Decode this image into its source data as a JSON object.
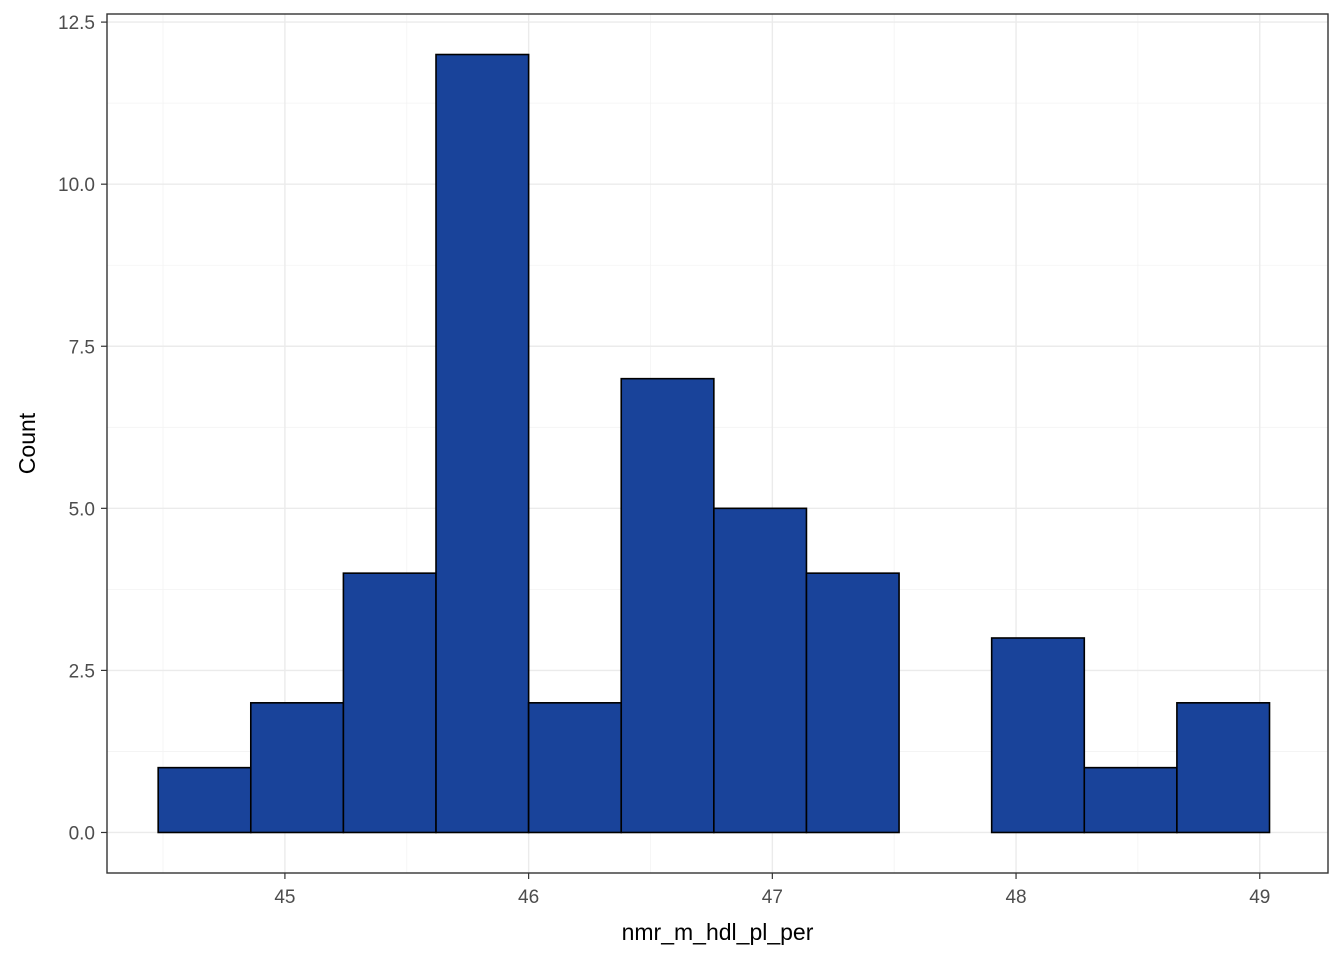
{
  "chart_data": {
    "type": "bar",
    "subtype": "histogram",
    "xlabel": "nmr_m_hdl_pl_per",
    "ylabel": "Count",
    "xlim": [
      44.27,
      49.28
    ],
    "ylim": [
      -0.625,
      12.625
    ],
    "x_ticks": [
      45,
      46,
      47,
      48,
      49
    ],
    "x_tick_labels": [
      "45",
      "46",
      "47",
      "48",
      "49"
    ],
    "y_ticks": [
      0,
      2.5,
      5,
      7.5,
      10,
      12.5
    ],
    "y_tick_labels": [
      "0.0",
      "2.5",
      "5.0",
      "7.5",
      "10.0",
      "12.5"
    ],
    "bin_edges": [
      44.48,
      44.86,
      45.24,
      45.62,
      46.0,
      46.38,
      46.76,
      47.14,
      47.52,
      47.9,
      48.28,
      48.66,
      49.04
    ],
    "values": [
      1,
      2,
      4,
      12,
      2,
      7,
      5,
      4,
      0,
      3,
      1,
      2
    ],
    "bar_fill": "#19439a",
    "bar_outline": "#000000",
    "grid": true,
    "theme": "bw"
  }
}
